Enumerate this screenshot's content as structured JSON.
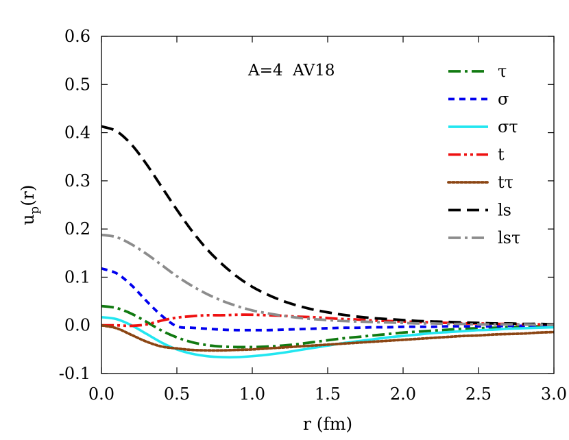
{
  "chart_data": {
    "type": "line",
    "title": "",
    "annotation": "A=4  AV18",
    "xlabel": "r (fm)",
    "ylabel_main": "u",
    "ylabel_sub": "p",
    "ylabel_tail": "(r)",
    "xlim": [
      0.0,
      3.0
    ],
    "ylim": [
      -0.1,
      0.6
    ],
    "x_ticks": [
      "0.0",
      "0.5",
      "1.0",
      "1.5",
      "2.0",
      "2.5",
      "3.0"
    ],
    "y_ticks": [
      "-0.1",
      "0.0",
      "0.1",
      "0.2",
      "0.3",
      "0.4",
      "0.5",
      "0.6"
    ],
    "grid": false,
    "legend_position": "top-right",
    "x": [
      0.0,
      0.1,
      0.2,
      0.3,
      0.4,
      0.5,
      0.6,
      0.7,
      0.8,
      0.9,
      1.0,
      1.1,
      1.2,
      1.3,
      1.4,
      1.5,
      1.6,
      1.7,
      1.8,
      1.9,
      2.0,
      2.1,
      2.2,
      2.3,
      2.4,
      2.5,
      2.6,
      2.7,
      2.8,
      2.9,
      3.0
    ],
    "series": [
      {
        "name": "τ",
        "color": "#117a11",
        "dash": "dashdot",
        "values": [
          0.04,
          0.036,
          0.024,
          0.007,
          -0.011,
          -0.025,
          -0.035,
          -0.041,
          -0.044,
          -0.045,
          -0.045,
          -0.044,
          -0.042,
          -0.039,
          -0.035,
          -0.031,
          -0.027,
          -0.024,
          -0.021,
          -0.018,
          -0.015,
          -0.013,
          -0.011,
          -0.009,
          -0.007,
          -0.006,
          -0.005,
          -0.004,
          -0.003,
          -0.002,
          -0.002
        ]
      },
      {
        "name": "σ",
        "color": "#0000ee",
        "dash": "short",
        "values": [
          0.118,
          0.108,
          0.083,
          0.05,
          0.02,
          -0.002,
          -0.005,
          -0.007,
          -0.009,
          -0.01,
          -0.01,
          -0.01,
          -0.009,
          -0.008,
          -0.007,
          -0.006,
          -0.005,
          -0.005,
          -0.004,
          -0.004,
          -0.003,
          -0.003,
          -0.003,
          -0.002,
          -0.002,
          -0.002,
          -0.002,
          -0.001,
          -0.001,
          -0.001,
          -0.001
        ]
      },
      {
        "name": "στ",
        "color": "#22e6f0",
        "dash": "solid",
        "values": [
          0.017,
          0.013,
          0.0,
          -0.018,
          -0.036,
          -0.05,
          -0.059,
          -0.064,
          -0.066,
          -0.066,
          -0.064,
          -0.061,
          -0.057,
          -0.052,
          -0.047,
          -0.042,
          -0.037,
          -0.033,
          -0.029,
          -0.025,
          -0.022,
          -0.019,
          -0.016,
          -0.014,
          -0.012,
          -0.01,
          -0.009,
          -0.007,
          -0.006,
          -0.005,
          -0.004
        ]
      },
      {
        "name": "t",
        "color": "#ee1111",
        "dash": "dashdotdot",
        "values": [
          0.0,
          0.0,
          -0.001,
          0.002,
          0.01,
          0.016,
          0.019,
          0.021,
          0.021,
          0.022,
          0.022,
          0.021,
          0.02,
          0.018,
          0.017,
          0.015,
          0.013,
          0.012,
          0.01,
          0.009,
          0.008,
          0.007,
          0.006,
          0.005,
          0.004,
          0.004,
          0.003,
          0.003,
          0.002,
          0.002,
          0.002
        ]
      },
      {
        "name": "tτ",
        "color": "#8b4513",
        "dash": "dotted",
        "values": [
          0.0,
          -0.006,
          -0.02,
          -0.034,
          -0.044,
          -0.048,
          -0.051,
          -0.052,
          -0.052,
          -0.051,
          -0.05,
          -0.048,
          -0.046,
          -0.044,
          -0.042,
          -0.04,
          -0.038,
          -0.036,
          -0.034,
          -0.032,
          -0.03,
          -0.028,
          -0.026,
          -0.024,
          -0.022,
          -0.021,
          -0.019,
          -0.018,
          -0.017,
          -0.015,
          -0.014
        ]
      },
      {
        "name": "ls",
        "color": "#000000",
        "dash": "long",
        "values": [
          0.413,
          0.403,
          0.375,
          0.334,
          0.287,
          0.24,
          0.196,
          0.158,
          0.127,
          0.101,
          0.08,
          0.064,
          0.051,
          0.041,
          0.033,
          0.027,
          0.022,
          0.018,
          0.015,
          0.013,
          0.011,
          0.009,
          0.008,
          0.007,
          0.006,
          0.005,
          0.004,
          0.004,
          0.003,
          0.003,
          0.002
        ]
      },
      {
        "name": "lsτ",
        "color": "#8c8c8c",
        "dash": "dashdot",
        "values": [
          0.188,
          0.183,
          0.168,
          0.148,
          0.125,
          0.102,
          0.082,
          0.065,
          0.051,
          0.04,
          0.031,
          0.025,
          0.02,
          0.016,
          0.013,
          0.011,
          0.009,
          0.008,
          0.007,
          0.006,
          0.005,
          0.004,
          0.004,
          0.003,
          0.003,
          0.002,
          0.002,
          0.002,
          0.002,
          0.001,
          0.001
        ]
      }
    ]
  }
}
